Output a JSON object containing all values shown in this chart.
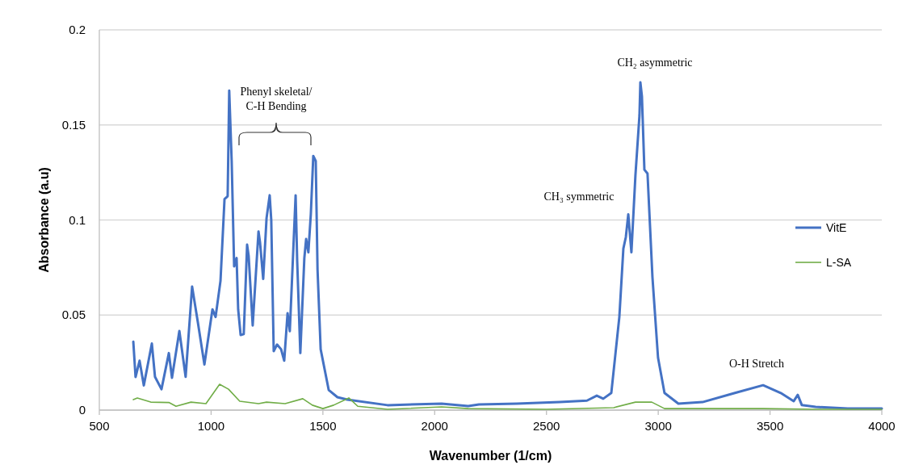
{
  "chart_data": {
    "type": "line",
    "xlabel": "Wavenumber (1/cm)",
    "ylabel": "Absorbance (a.u)",
    "xlim": [
      500,
      4000
    ],
    "xticks": [
      500,
      1000,
      1500,
      2000,
      2500,
      3000,
      3500,
      4000
    ],
    "ylim": [
      0,
      0.2
    ],
    "yticks": [
      0,
      0.05,
      0.1,
      0.15,
      0.2
    ],
    "grid": "y",
    "legend": "right",
    "marker": "none",
    "line_style": "solid",
    "series": [
      {
        "name": "VitE",
        "color": "#4472c4",
        "x": [
          652,
          662,
          680,
          699,
          735,
          749,
          778,
          811,
          825,
          858,
          886,
          915,
          941,
          970,
          1006,
          1020,
          1042,
          1060,
          1074,
          1081,
          1092,
          1103,
          1114,
          1121,
          1132,
          1146,
          1161,
          1168,
          1186,
          1212,
          1219,
          1233,
          1248,
          1262,
          1269,
          1280,
          1295,
          1313,
          1327,
          1342,
          1352,
          1378,
          1385,
          1399,
          1417,
          1425,
          1435,
          1446,
          1457,
          1468,
          1476,
          1490,
          1526,
          1565,
          1609,
          1789,
          2031,
          2150,
          2198,
          2367,
          2559,
          2681,
          2725,
          2754,
          2790,
          2826,
          2844,
          2855,
          2866,
          2880,
          2898,
          2916,
          2920,
          2927,
          2938,
          2952,
          2974,
          2999,
          3028,
          3090,
          3198,
          3343,
          3469,
          3548,
          3606,
          3624,
          3642,
          3704,
          3848,
          4000
        ],
        "values": [
          0.036,
          0.0174,
          0.026,
          0.013,
          0.035,
          0.0175,
          0.011,
          0.03,
          0.017,
          0.0416,
          0.0175,
          0.065,
          0.046,
          0.024,
          0.053,
          0.049,
          0.068,
          0.111,
          0.1125,
          0.168,
          0.131,
          0.0756,
          0.08,
          0.053,
          0.0395,
          0.04,
          0.087,
          0.081,
          0.0445,
          0.094,
          0.088,
          0.069,
          0.101,
          0.113,
          0.1,
          0.031,
          0.0345,
          0.032,
          0.026,
          0.051,
          0.0415,
          0.113,
          0.0785,
          0.03,
          0.08,
          0.09,
          0.083,
          0.103,
          0.1337,
          0.131,
          0.074,
          0.032,
          0.0106,
          0.0068,
          0.0055,
          0.0026,
          0.0034,
          0.0021,
          0.003,
          0.0034,
          0.0042,
          0.005,
          0.0076,
          0.006,
          0.009,
          0.049,
          0.085,
          0.091,
          0.103,
          0.083,
          0.1236,
          0.155,
          0.1724,
          0.165,
          0.1265,
          0.1244,
          0.07,
          0.0276,
          0.009,
          0.0034,
          0.0042,
          0.009,
          0.0131,
          0.009,
          0.0047,
          0.008,
          0.0027,
          0.0017,
          0.0008,
          0.0008
        ]
      },
      {
        "name": "L-SA",
        "color": "#70ad47",
        "x": [
          652,
          670,
          730,
          811,
          843,
          910,
          977,
          1038,
          1078,
          1128,
          1212,
          1248,
          1331,
          1410,
          1453,
          1500,
          1548,
          1616,
          1656,
          1789,
          2031,
          2150,
          2501,
          2801,
          2898,
          2971,
          3028,
          3469,
          3704,
          4000
        ],
        "values": [
          0.0055,
          0.0064,
          0.0042,
          0.004,
          0.002,
          0.0042,
          0.0034,
          0.0136,
          0.011,
          0.0047,
          0.0034,
          0.0042,
          0.0034,
          0.006,
          0.0026,
          0.0008,
          0.0026,
          0.0064,
          0.002,
          0.0004,
          0.0017,
          0.0008,
          0.0004,
          0.0013,
          0.0042,
          0.0042,
          0.0008,
          0.0008,
          0.0004,
          0.0004
        ]
      }
    ],
    "annotations": [
      "Phenyl skeletal/\nC-H Bending",
      "CH₂ asymmetric",
      "CH₃ symmetric",
      "O-H Stretch"
    ]
  }
}
